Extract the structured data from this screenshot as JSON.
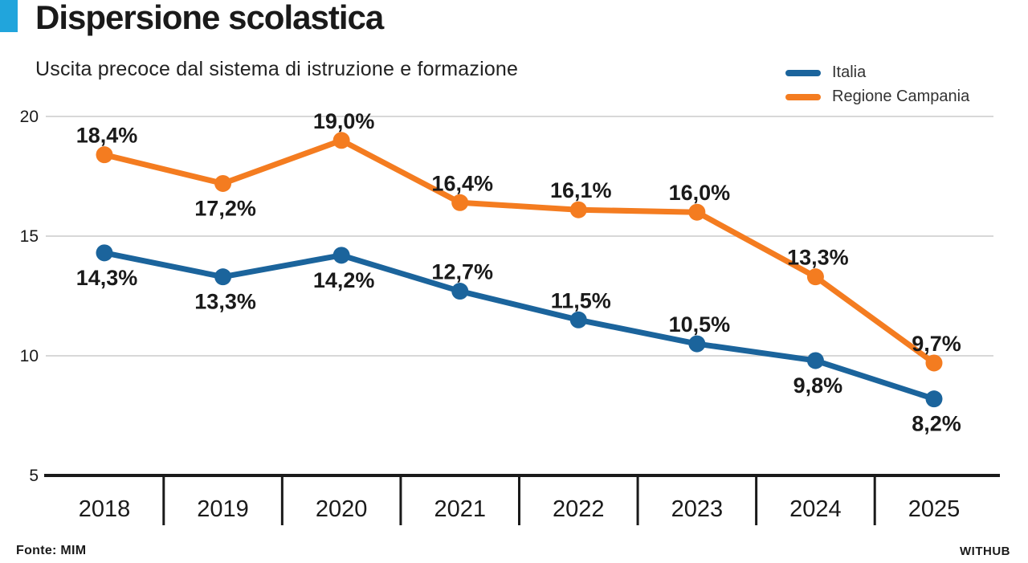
{
  "header": {
    "title": "Dispersione scolastica",
    "subtitle": "Uscita precoce dal sistema di istruzione e formazione"
  },
  "footer": {
    "source": "Fonte: MIM",
    "brand": "WITHUB"
  },
  "colors": {
    "accent_bar": "#21A5DC",
    "italia": "#1B649C",
    "campania": "#F47C20",
    "grid": "#CCCCCC",
    "axis": "#1A1A1A",
    "text": "#1A1A1A",
    "legend_text": "#333333"
  },
  "chart_data": {
    "type": "line",
    "title": "Dispersione scolastica",
    "subtitle": "Uscita precoce dal sistema di istruzione e formazione",
    "source": "Fonte: MIM",
    "x": [
      "2018",
      "2019",
      "2020",
      "2021",
      "2022",
      "2023",
      "2024",
      "2025"
    ],
    "series": [
      {
        "name": "Italia",
        "color_key": "italia",
        "values": [
          14.3,
          13.3,
          14.2,
          12.7,
          11.5,
          10.5,
          9.8,
          8.2
        ],
        "labels": [
          "14,3%",
          "13,3%",
          "14,2%",
          "12,7%",
          "11,5%",
          "10,5%",
          "9,8%",
          "8,2%"
        ],
        "label_pos": [
          "below",
          "below",
          "below",
          "above",
          "above",
          "above",
          "below",
          "below"
        ]
      },
      {
        "name": "Regione Campania",
        "color_key": "campania",
        "values": [
          18.4,
          17.2,
          19.0,
          16.4,
          16.1,
          16.0,
          13.3,
          9.7
        ],
        "labels": [
          "18,4%",
          "17,2%",
          "19,0%",
          "16,4%",
          "16,1%",
          "16,0%",
          "13,3%",
          "9,7%"
        ],
        "label_pos": [
          "above",
          "below",
          "above",
          "above",
          "above",
          "above",
          "above",
          "above"
        ]
      }
    ],
    "ylim": [
      5,
      20
    ],
    "yticks": [
      20,
      15,
      10,
      5
    ],
    "grid": "horizontal",
    "legend_position": "top-right"
  }
}
